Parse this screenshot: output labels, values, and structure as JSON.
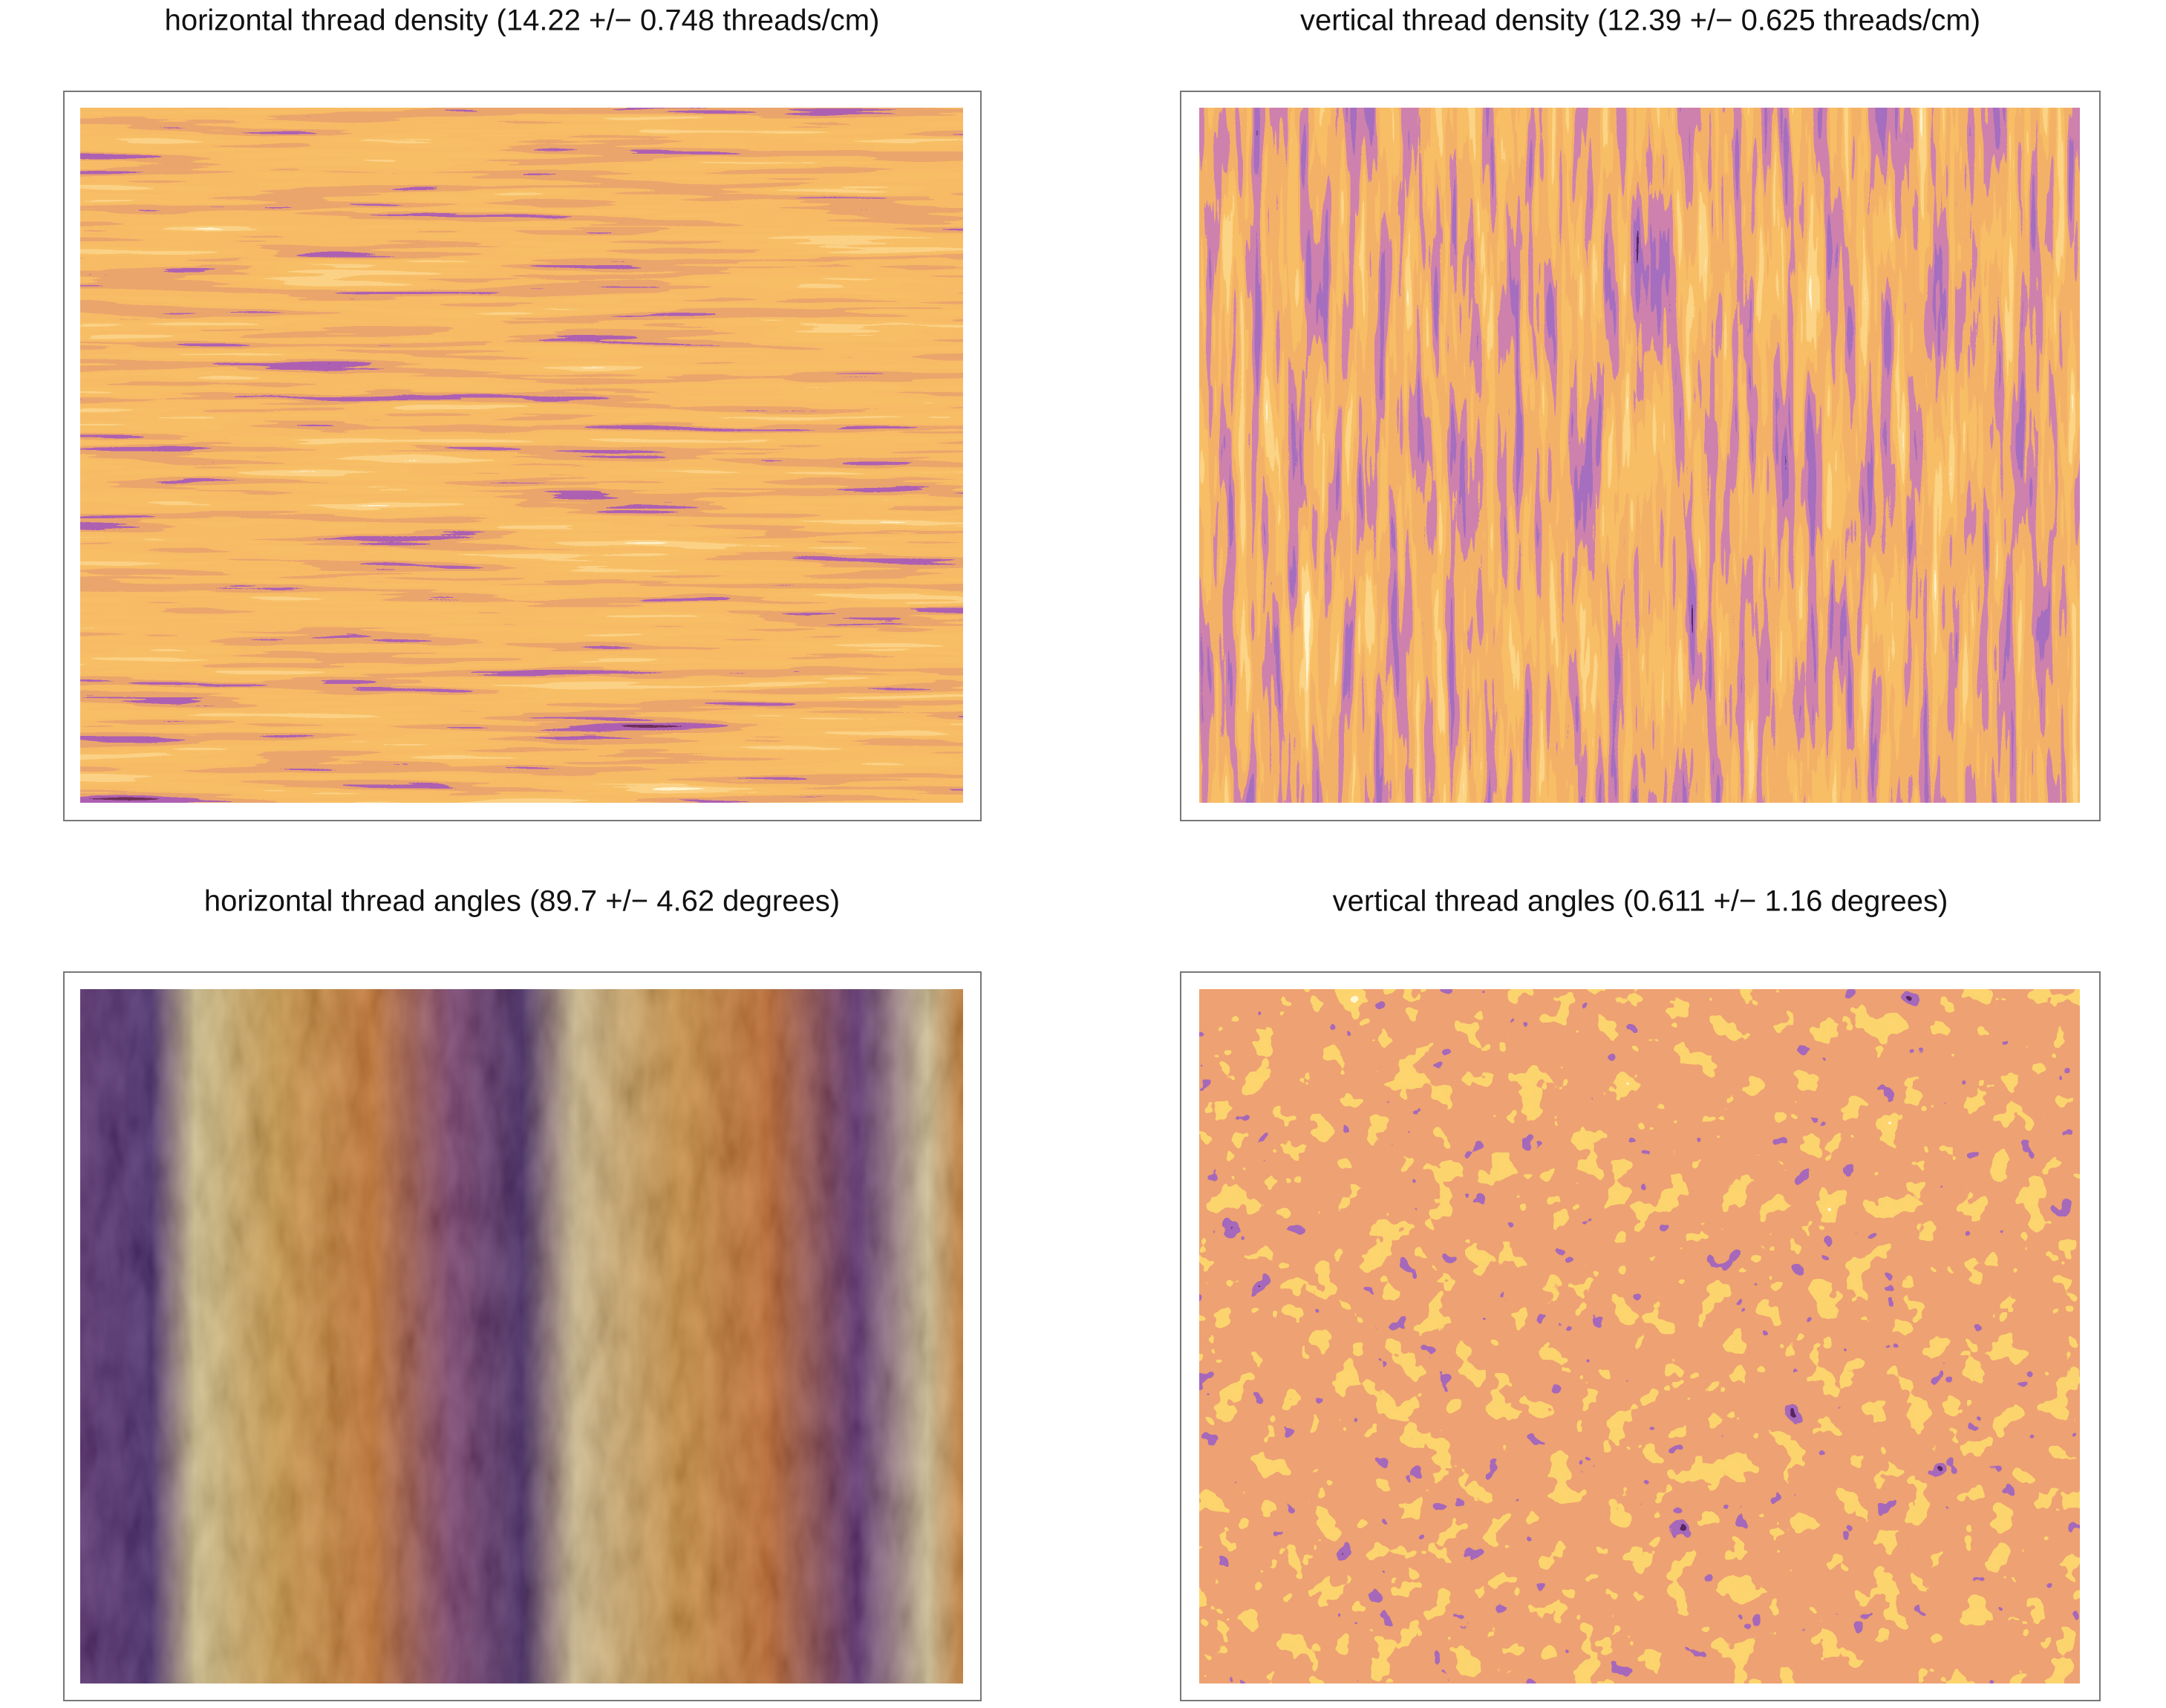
{
  "panels": [
    {
      "title": "horizontal thread density (14.22 +/− 0.748 threads/cm)"
    },
    {
      "title": "vertical thread density (12.39 +/− 0.625 threads/cm)"
    },
    {
      "title": "horizontal thread angles (89.7 +/− 4.62 degrees)"
    },
    {
      "title": "vertical thread angles (0.611 +/− 1.16 degrees)"
    }
  ]
}
